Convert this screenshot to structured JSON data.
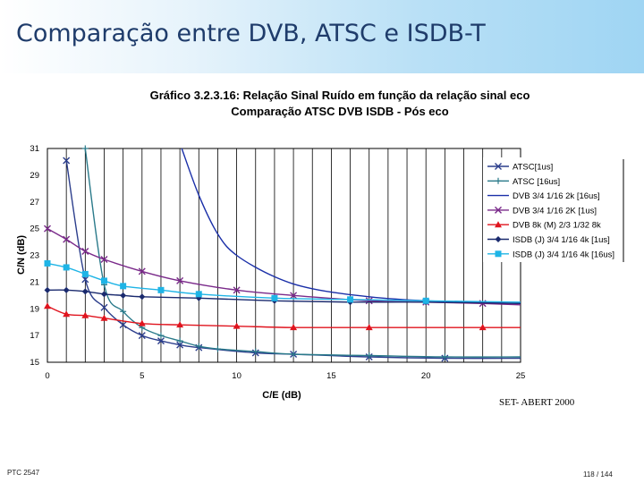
{
  "slide": {
    "title": "Comparação entre DVB, ATSC e ISDB-T",
    "source_note": "SET- ABERT 2000",
    "footer_left": "PTC 2547",
    "page": "118 / 144"
  },
  "chart_data": {
    "type": "line",
    "title": "Gráfico 3.2.3.16: Relação Sinal Ruído em função da relação sinal eco",
    "subtitle": "Comparação ATSC DVB ISDB - Pós eco",
    "xlabel": "C/E (dB)",
    "ylabel": "C/N (dB)",
    "xlim": [
      0,
      25
    ],
    "ylim": [
      15,
      31
    ],
    "x_ticks": [
      "0",
      "5",
      "10",
      "15",
      "20",
      "25"
    ],
    "y_ticks": [
      "15",
      "17",
      "19",
      "21",
      "23",
      "25",
      "27",
      "29",
      "31"
    ],
    "grid": "vertical",
    "legend_position": "right",
    "series": [
      {
        "name": "ATSC[1us]",
        "color": "#2c3e8c",
        "marker": "x",
        "points": [
          [
            1,
            30.1
          ],
          [
            2,
            21.2
          ],
          [
            3,
            19.1
          ],
          [
            4,
            17.8
          ],
          [
            5,
            17.0
          ],
          [
            6,
            16.6
          ],
          [
            7,
            16.3
          ],
          [
            8,
            16.1
          ],
          [
            11,
            15.7
          ],
          [
            13,
            15.6
          ],
          [
            17,
            15.4
          ],
          [
            21,
            15.3
          ],
          [
            25,
            15.3
          ]
        ]
      },
      {
        "name": "ATSC [16us]",
        "color": "#2a7a8a",
        "marker": "plus",
        "points": [
          [
            2,
            31.0
          ],
          [
            3,
            20.8
          ],
          [
            4,
            18.8
          ],
          [
            5,
            17.6
          ],
          [
            6,
            17.0
          ],
          [
            7,
            16.6
          ],
          [
            8,
            16.2
          ],
          [
            9,
            16.0
          ],
          [
            11,
            15.8
          ],
          [
            13,
            15.6
          ],
          [
            17,
            15.5
          ],
          [
            21,
            15.4
          ],
          [
            25,
            15.4
          ]
        ]
      },
      {
        "name": "DVB 3/4 1/16 2k [16us]",
        "color": "#1a2fa8",
        "marker": "none",
        "points": [
          [
            7.1,
            31.0
          ],
          [
            8,
            27.5
          ],
          [
            9,
            24.6
          ],
          [
            10,
            23.0
          ],
          [
            12,
            21.4
          ],
          [
            14,
            20.5
          ],
          [
            17,
            19.9
          ],
          [
            20,
            19.6
          ],
          [
            25,
            19.4
          ]
        ]
      },
      {
        "name": "DVB 3/4 1/16 2K [1us]",
        "color": "#7a2a8a",
        "marker": "x",
        "points": [
          [
            0,
            25.0
          ],
          [
            1,
            24.2
          ],
          [
            2,
            23.3
          ],
          [
            3,
            22.7
          ],
          [
            5,
            21.8
          ],
          [
            7,
            21.1
          ],
          [
            10,
            20.4
          ],
          [
            13,
            20.0
          ],
          [
            17,
            19.6
          ],
          [
            20,
            19.5
          ],
          [
            23,
            19.4
          ],
          [
            25,
            19.3
          ]
        ]
      },
      {
        "name": "DVB 8k (M) 2/3 1/32 8k",
        "color": "#e0141e",
        "marker": "triangle",
        "points": [
          [
            0,
            19.2
          ],
          [
            1,
            18.6
          ],
          [
            2,
            18.5
          ],
          [
            3,
            18.3
          ],
          [
            5,
            17.9
          ],
          [
            7,
            17.8
          ],
          [
            10,
            17.7
          ],
          [
            13,
            17.6
          ],
          [
            17,
            17.6
          ],
          [
            23,
            17.6
          ],
          [
            25,
            17.6
          ]
        ]
      },
      {
        "name": "ISDB (J) 3/4 1/16 4k [1us]",
        "color": "#1a2a6e",
        "marker": "diamond",
        "points": [
          [
            0,
            20.4
          ],
          [
            1,
            20.4
          ],
          [
            2,
            20.3
          ],
          [
            3,
            20.1
          ],
          [
            4,
            20.0
          ],
          [
            5,
            19.9
          ],
          [
            8,
            19.8
          ],
          [
            12,
            19.6
          ],
          [
            16,
            19.5
          ],
          [
            20,
            19.5
          ],
          [
            25,
            19.4
          ]
        ]
      },
      {
        "name": "ISDB (J) 3/4 1/16 4k [16us]",
        "color": "#1eb4e6",
        "marker": "square",
        "points": [
          [
            0,
            22.4
          ],
          [
            1,
            22.1
          ],
          [
            2,
            21.6
          ],
          [
            3,
            21.1
          ],
          [
            4,
            20.7
          ],
          [
            6,
            20.4
          ],
          [
            8,
            20.1
          ],
          [
            12,
            19.8
          ],
          [
            16,
            19.7
          ],
          [
            20,
            19.6
          ],
          [
            25,
            19.5
          ]
        ]
      }
    ]
  }
}
